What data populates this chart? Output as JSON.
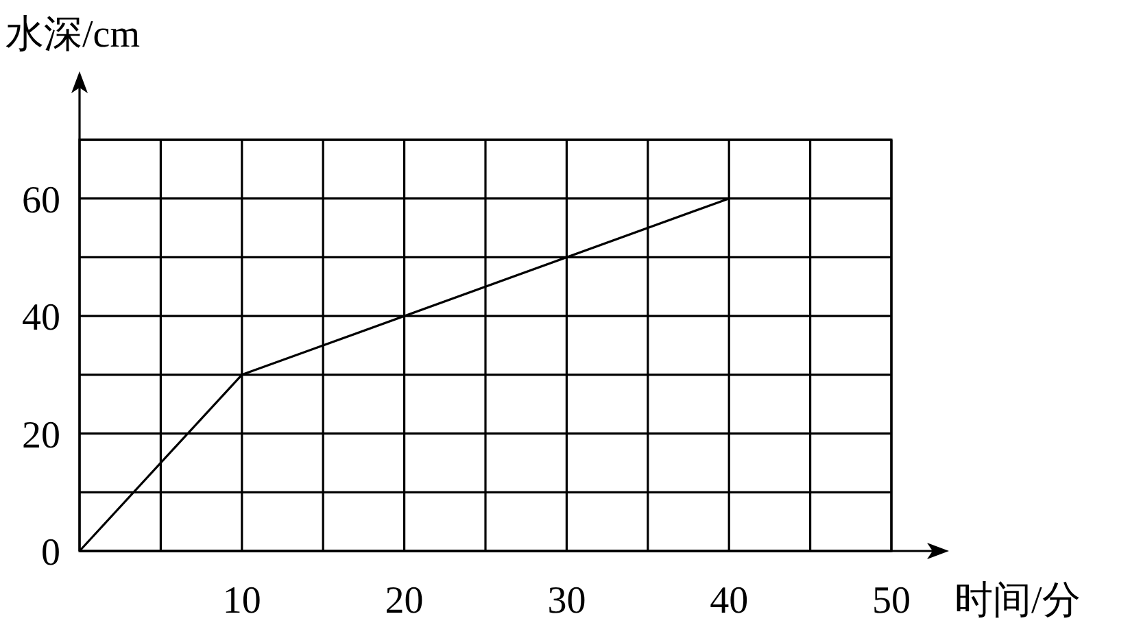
{
  "chart_data": {
    "type": "line",
    "xlabel": "时间/分",
    "ylabel": "水深/cm",
    "x": [
      0,
      10,
      40
    ],
    "series": [
      {
        "color": "#000000",
        "values": [
          0,
          30,
          60
        ]
      }
    ],
    "xlim": [
      0,
      50
    ],
    "ylim": [
      0,
      70
    ],
    "xticks": [
      {
        "value": 5,
        "label": null
      },
      10,
      {
        "value": 15,
        "label": null
      },
      20,
      {
        "value": 25,
        "label": null
      },
      30,
      {
        "value": 35,
        "label": null
      },
      40,
      {
        "value": 45,
        "label": null
      },
      50
    ],
    "yticks": [
      0,
      {
        "value": 10,
        "label": null
      },
      20,
      {
        "value": 30,
        "label": null
      },
      40,
      {
        "value": 50,
        "label": null
      },
      60,
      {
        "value": 70,
        "label": null
      }
    ],
    "grid": true,
    "marker": "none",
    "line_style": "solid"
  }
}
